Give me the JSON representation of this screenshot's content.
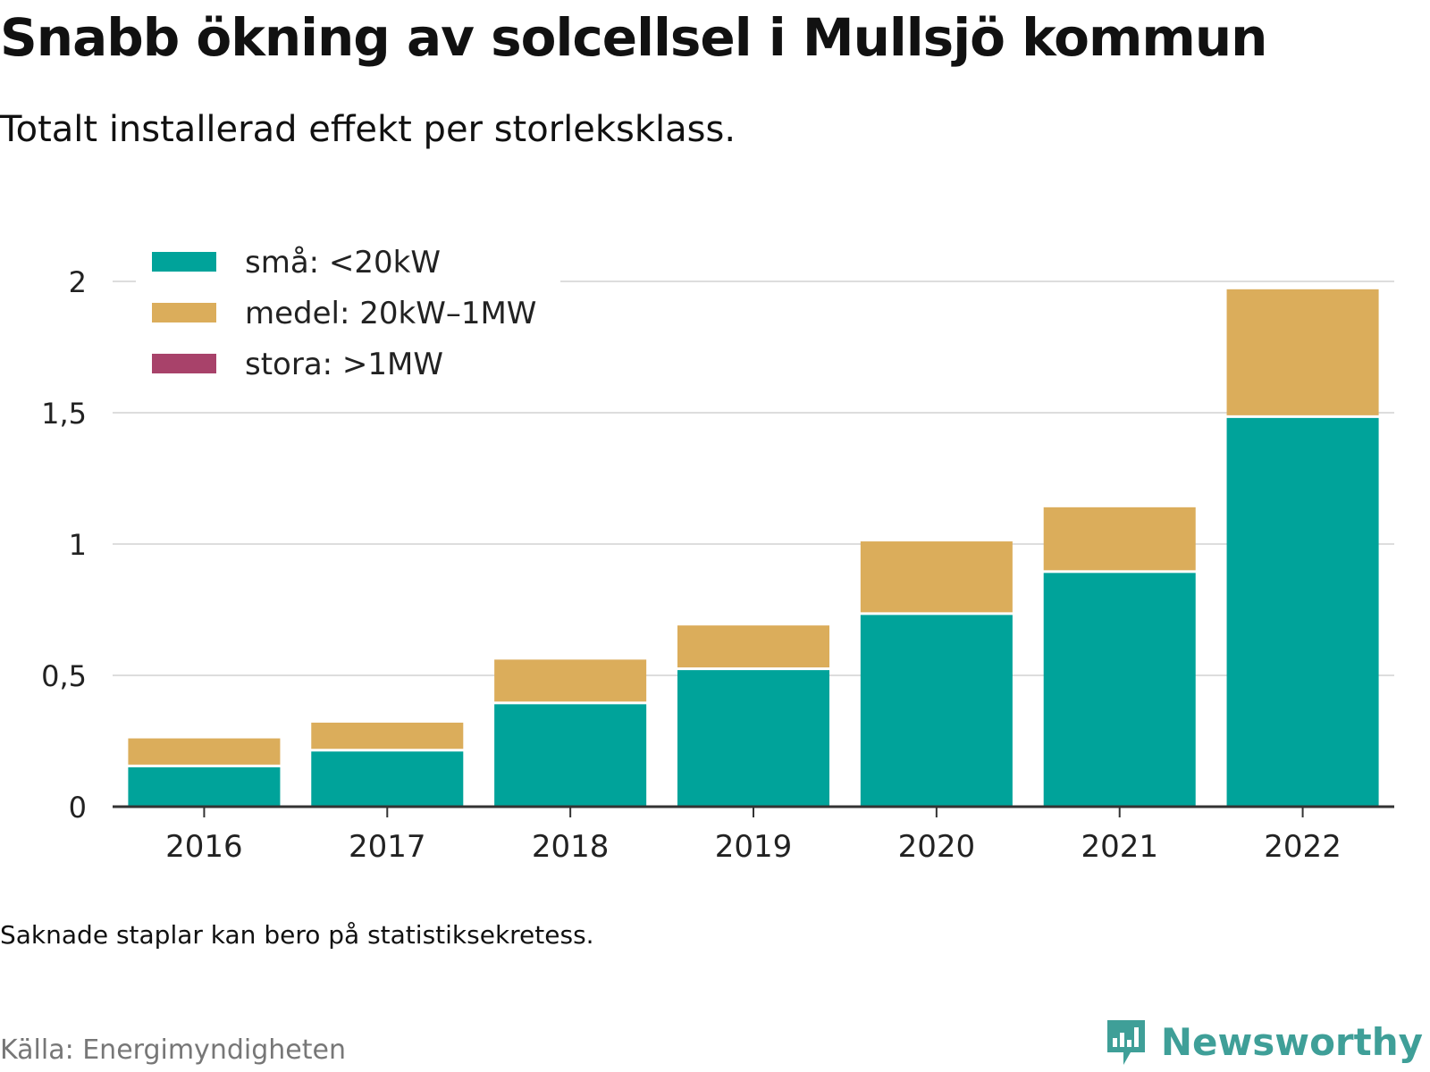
{
  "title": "Snabb ökning av solcellsel i Mullsjö kommun",
  "subtitle": "Totalt installerad effekt per storleksklass.",
  "note": "Saknade staplar kan bero på statistiksekretess.",
  "source": "Källa: Energimyndigheten",
  "brand": "Newsworthy",
  "colors": {
    "small": "#00a39a",
    "medium": "#dbad5b",
    "large": "#a8426a",
    "grid": "#dddddd",
    "axis": "#333333",
    "brand": "#3f9f98"
  },
  "chart_data": {
    "type": "bar",
    "stacked": true,
    "categories": [
      "2016",
      "2017",
      "2018",
      "2019",
      "2020",
      "2021",
      "2022"
    ],
    "series": [
      {
        "name": "små: <20kW",
        "color": "#00a39a",
        "values": [
          0.15,
          0.21,
          0.39,
          0.52,
          0.73,
          0.89,
          1.48
        ]
      },
      {
        "name": "medel: 20kW–1MW",
        "color": "#dbad5b",
        "values": [
          0.11,
          0.11,
          0.17,
          0.17,
          0.28,
          0.25,
          0.49
        ]
      },
      {
        "name": "stora: >1MW",
        "color": "#a8426a",
        "values": [
          0,
          0,
          0,
          0,
          0,
          0,
          0
        ]
      }
    ],
    "yticks": [
      0,
      0.5,
      1,
      1.5,
      2
    ],
    "ytick_labels": [
      "0",
      "0,5",
      "1",
      "1,5",
      "2"
    ],
    "ylim": [
      0,
      2.05
    ],
    "legend": "top-left",
    "grid": true
  }
}
